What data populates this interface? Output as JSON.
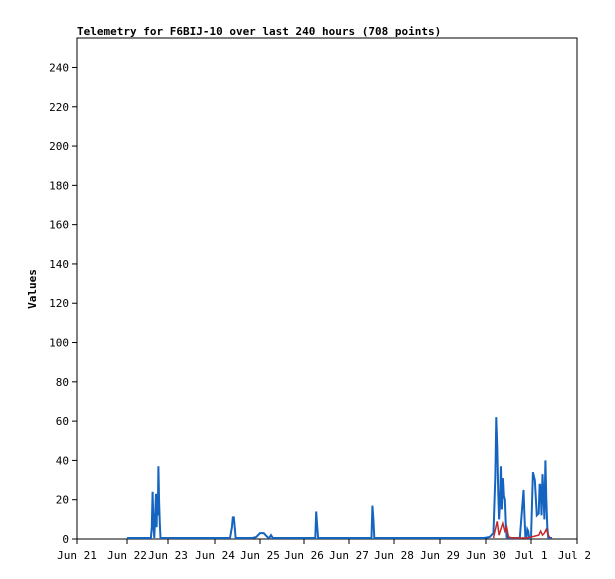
{
  "chart_data": {
    "type": "line",
    "title": "Telemetry for F6BIJ-10 over last 240 hours (708 points)",
    "xlabel": "",
    "ylabel": "Values",
    "ylim": [
      0,
      255
    ],
    "yticks": [
      0,
      20,
      40,
      60,
      80,
      100,
      120,
      140,
      160,
      180,
      200,
      220,
      240
    ],
    "xlim": [
      0,
      240
    ],
    "xticks": [
      {
        "x": 0,
        "label": "Jun 21"
      },
      {
        "x": 24,
        "label": "Jun 22"
      },
      {
        "x": 48,
        "label": "Jun 23"
      },
      {
        "x": 72,
        "label": "Jun 24"
      },
      {
        "x": 96,
        "label": "Jun 25"
      },
      {
        "x": 120,
        "label": "Jun 26"
      },
      {
        "x": 144,
        "label": "Jun 27"
      },
      {
        "x": 168,
        "label": "Jun 28"
      },
      {
        "x": 192,
        "label": "Jun 29"
      },
      {
        "x": 216,
        "label": "Jun 30"
      },
      {
        "x": 240,
        "label": "Jul 1"
      },
      {
        "x": 264,
        "label": "Jul 2"
      }
    ],
    "grid": false,
    "series": [
      {
        "color": "#1565c0",
        "x": [
          24,
          36,
          38,
          38.5,
          39,
          39.5,
          40,
          41,
          41.3,
          41.6,
          42,
          42.4,
          42.8,
          43.2,
          43.6,
          44,
          46,
          60,
          80,
          81,
          81.5,
          82,
          82.5,
          83,
          83.5,
          84,
          90,
          92,
          94,
          95,
          96,
          97,
          98,
          99,
          100,
          101,
          102,
          103,
          104,
          110,
          122,
          126,
          126.5,
          127,
          127.5,
          128,
          140,
          155,
          156,
          156.5,
          157,
          157.5,
          158,
          170,
          190,
          210,
          215,
          218,
          219,
          220,
          221,
          221.5,
          222,
          222.5,
          223,
          223.5,
          224,
          224.5,
          225,
          225.5,
          226,
          226.5,
          227,
          227.5,
          228,
          228.5,
          229,
          230,
          232,
          234,
          236,
          236.5,
          237,
          237.5,
          238,
          238.5,
          239,
          240,
          241,
          242,
          243,
          244,
          244.5,
          245,
          245.5,
          246,
          246.5,
          247,
          247.5,
          248,
          248.5,
          249,
          249.5,
          250,
          250.5,
          251
        ],
        "y": [
          0.5,
          0.5,
          0.5,
          6,
          24,
          6,
          0.5,
          23,
          6,
          19,
          12,
          37,
          19,
          8,
          0.5,
          0.5,
          0.5,
          0.5,
          0.5,
          6,
          11,
          11,
          6,
          0.5,
          0.5,
          0.5,
          0.5,
          0.5,
          1,
          2,
          3,
          3,
          3,
          2,
          1,
          0.5,
          2,
          0.5,
          0.5,
          0.5,
          0.5,
          0.5,
          14,
          7,
          0.5,
          0.5,
          0.5,
          0.5,
          0.5,
          17,
          10,
          0.5,
          0.5,
          0.5,
          0.5,
          0.5,
          0.5,
          1,
          2,
          3,
          32,
          62,
          47,
          25,
          10,
          19,
          37,
          15,
          31,
          22,
          20,
          8,
          0.5,
          2,
          0.5,
          0.5,
          0.5,
          0.5,
          0.5,
          0.5,
          25,
          12,
          0.5,
          0.5,
          5,
          4,
          0.5,
          0.5,
          34,
          30,
          12,
          13,
          28,
          27,
          12,
          33,
          22,
          10,
          40,
          20,
          6,
          0.5,
          0.5,
          0.5,
          0.5,
          0.5
        ]
      },
      {
        "color": "#c62828",
        "x": [
          220,
          222,
          223,
          224,
          225,
          226,
          227,
          228,
          230,
          238,
          244,
          245,
          246,
          247,
          248,
          249,
          250
        ],
        "y": [
          0.5,
          9,
          2,
          5,
          8,
          4,
          6,
          1,
          0.5,
          0.5,
          2,
          4,
          2,
          3,
          5,
          2,
          0.5
        ]
      }
    ]
  }
}
